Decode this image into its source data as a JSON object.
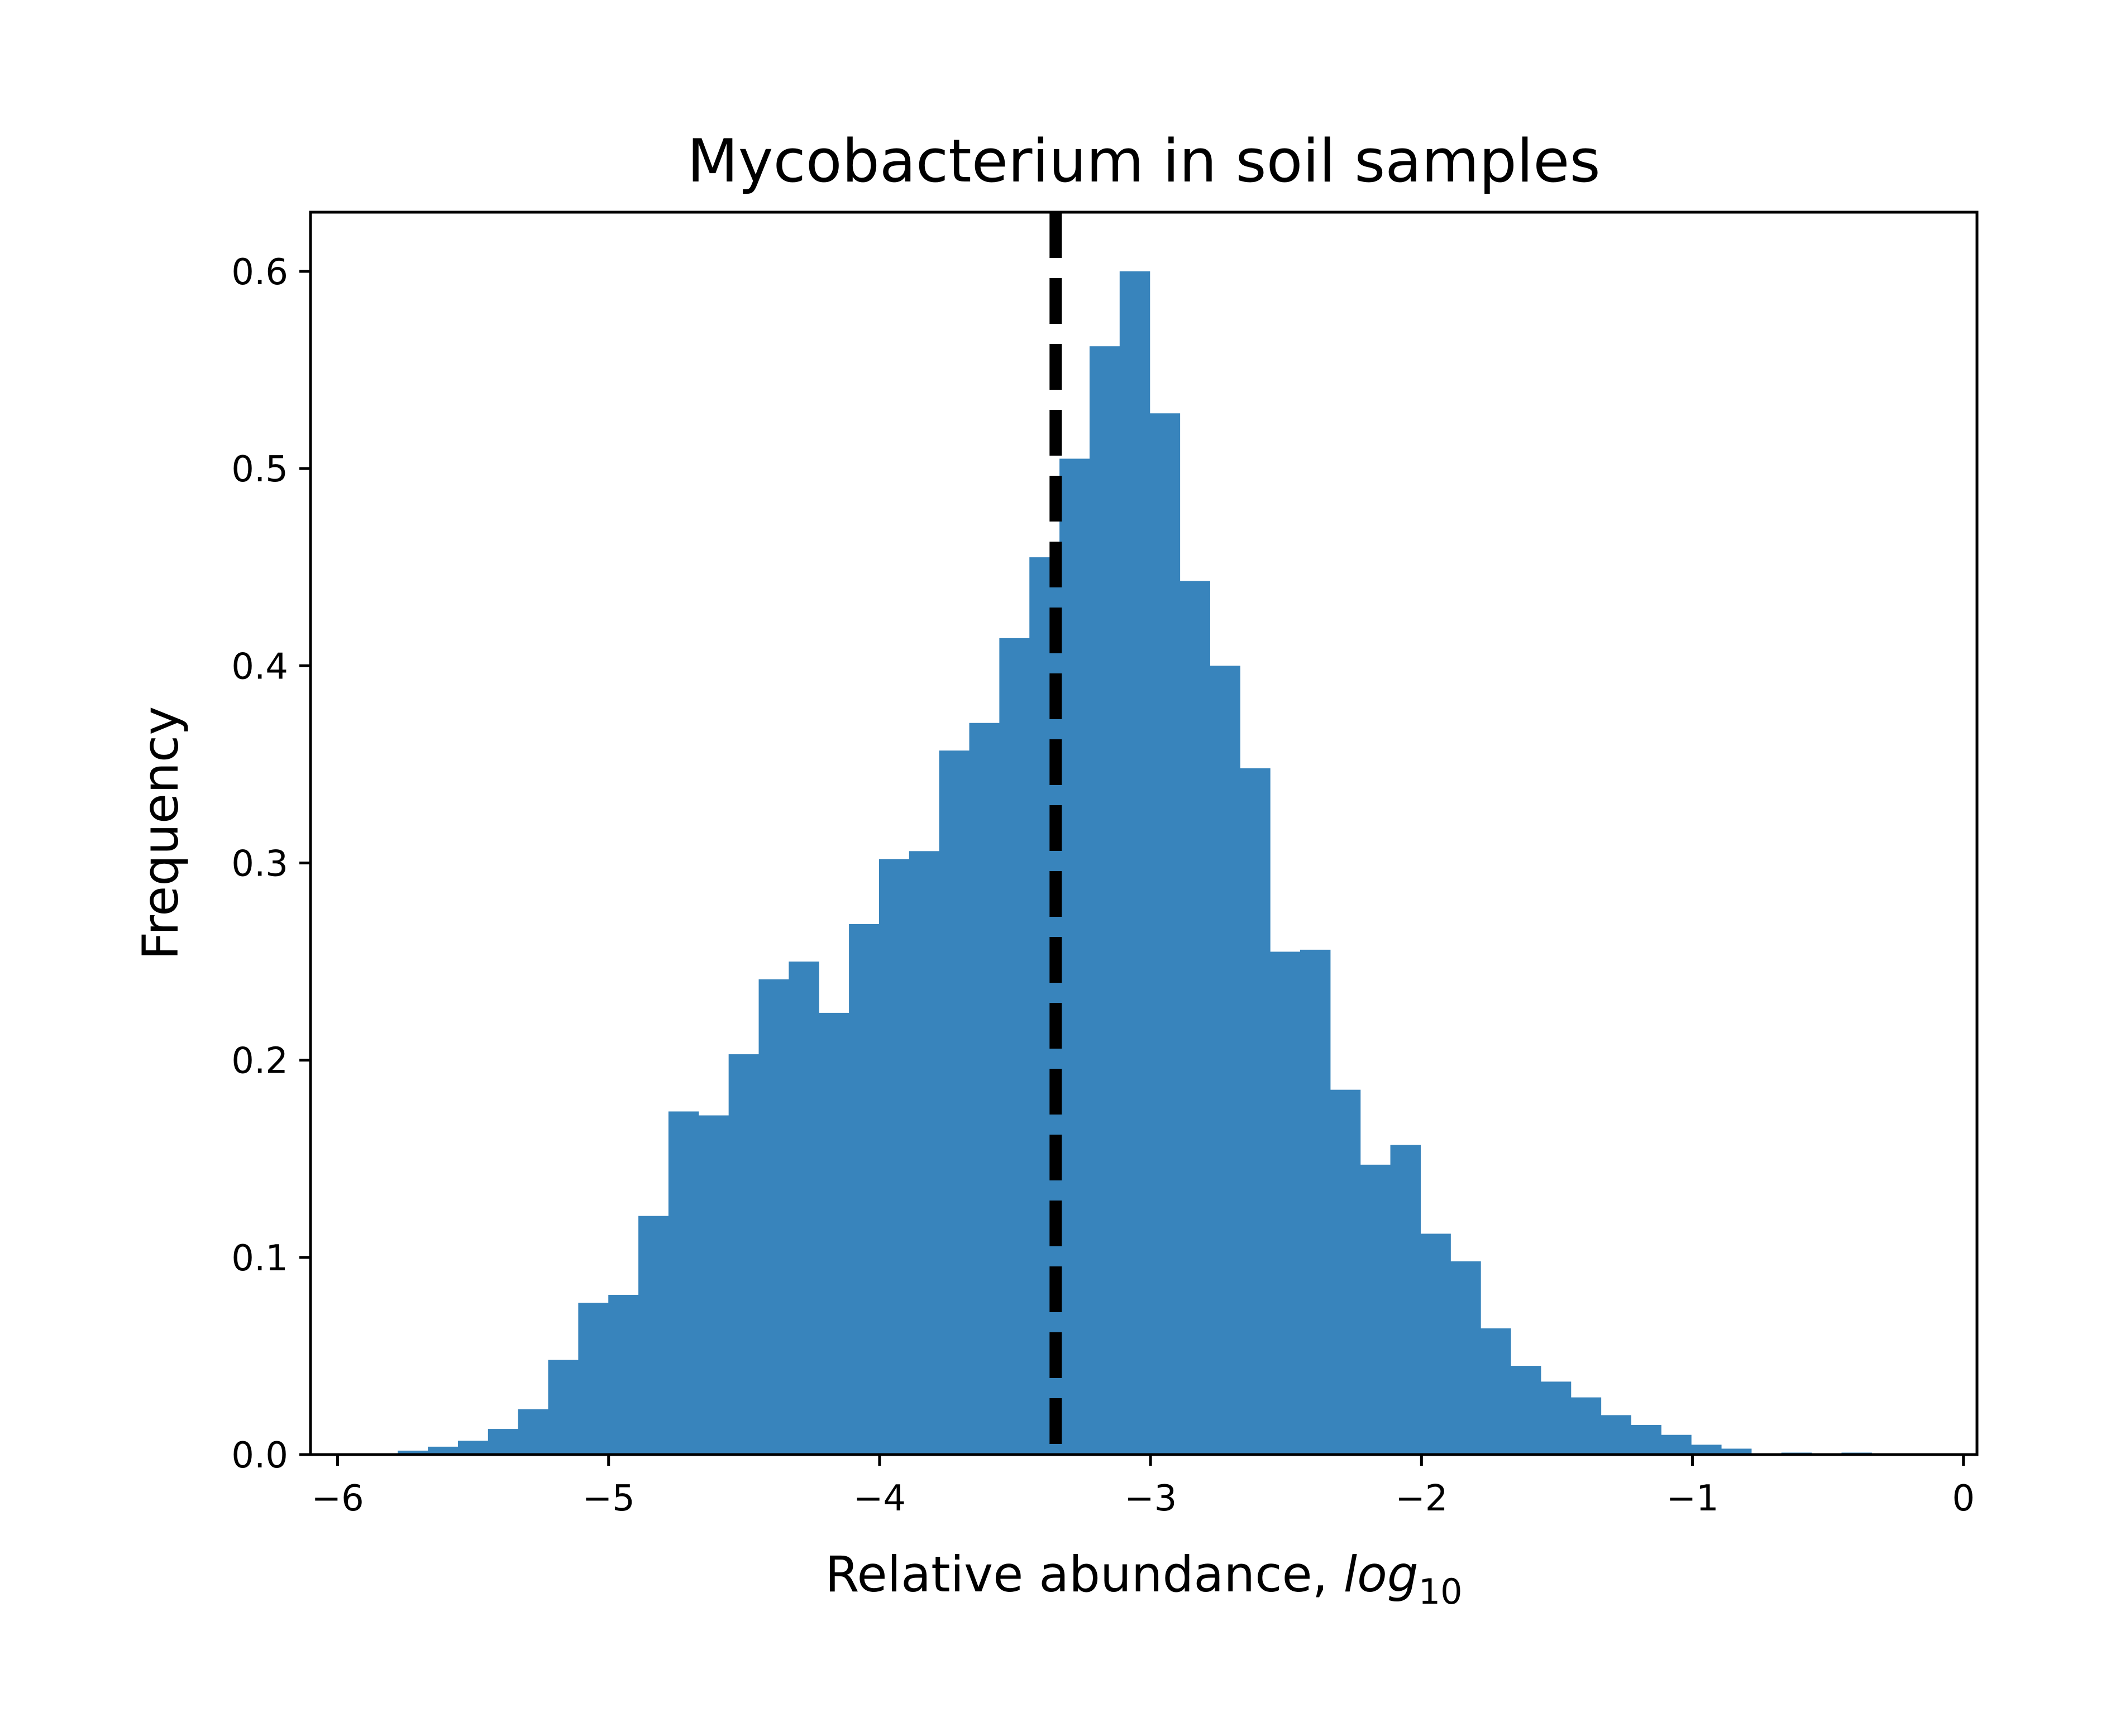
{
  "chart_data": {
    "type": "bar",
    "title": "Mycobacterium in soil samples",
    "xlabel": "Relative abundance, ",
    "xlabel_math_base": "log",
    "xlabel_math_subscript": "10",
    "ylabel": "Frequency",
    "xlim": [
      -6.1,
      0.05
    ],
    "ylim": [
      0,
      0.63
    ],
    "grid": false,
    "bar_color": "#3884bc",
    "reference_line": {
      "x": -3.35,
      "style": "dashed",
      "color": "#000000"
    },
    "x_ticks": [
      -6,
      -5,
      -4,
      -3,
      -2,
      -1,
      0
    ],
    "x_tick_labels": [
      "−6",
      "−5",
      "−4",
      "−3",
      "−2",
      "−1",
      "0"
    ],
    "y_ticks": [
      0,
      0.1,
      0.2,
      0.3,
      0.4,
      0.5,
      0.6
    ],
    "y_tick_labels": [
      "0.0",
      "0.1",
      "0.2",
      "0.3",
      "0.4",
      "0.5",
      "0.6"
    ],
    "bin_start": -6.0,
    "bin_width": 0.111,
    "values": [
      0.0,
      0.0,
      0.002,
      0.004,
      0.007,
      0.013,
      0.023,
      0.048,
      0.077,
      0.081,
      0.121,
      0.174,
      0.172,
      0.203,
      0.241,
      0.25,
      0.224,
      0.269,
      0.302,
      0.306,
      0.357,
      0.371,
      0.414,
      0.455,
      0.505,
      0.562,
      0.6,
      0.528,
      0.443,
      0.4,
      0.348,
      0.255,
      0.256,
      0.185,
      0.147,
      0.157,
      0.112,
      0.098,
      0.064,
      0.045,
      0.037,
      0.029,
      0.02,
      0.015,
      0.01,
      0.005,
      0.003,
      0.0,
      0.001,
      0.0,
      0.001,
      0.0,
      0.0,
      0.0
    ]
  }
}
